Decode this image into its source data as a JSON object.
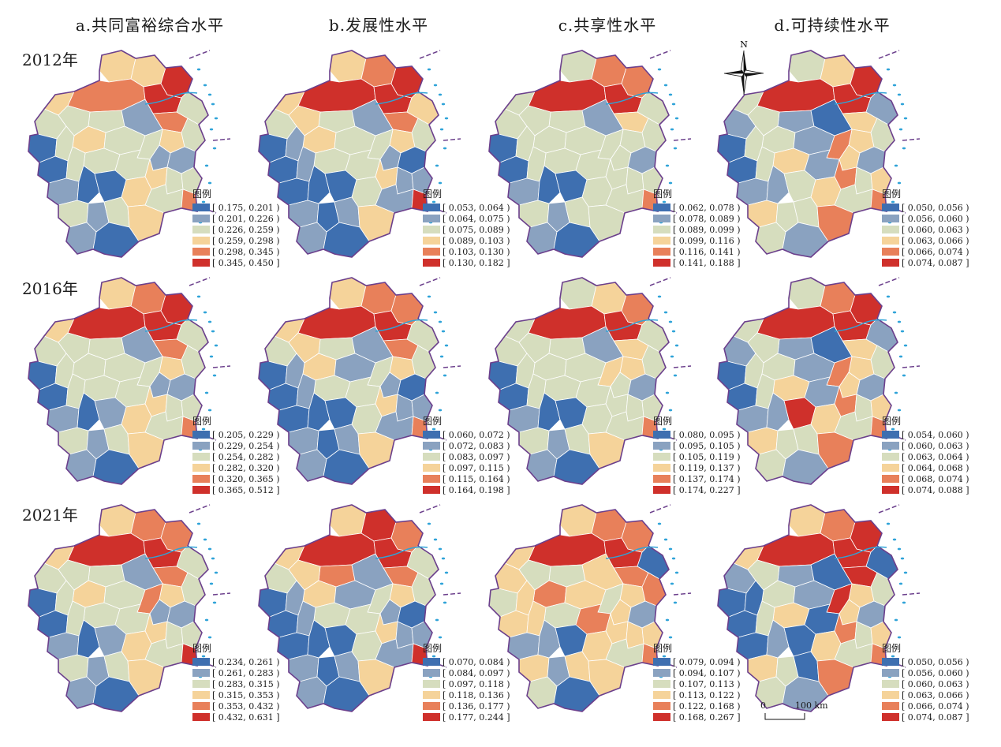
{
  "palette": [
    "#3e6fb0",
    "#8aa2c0",
    "#d6ddbe",
    "#f5d39a",
    "#e8805a",
    "#cf302b"
  ],
  "columns": [
    {
      "title": "a.共同富裕综合水平"
    },
    {
      "title": "b.发展性水平"
    },
    {
      "title": "c.共享性水平"
    },
    {
      "title": "d.可持续性水平"
    }
  ],
  "years": [
    "2012年",
    "2016年",
    "2021年"
  ],
  "legend_title": "图例",
  "north_label": "N",
  "scale": {
    "zero": "0",
    "end": "100 km"
  },
  "panels": [
    {
      "year": "2012年",
      "column": "a",
      "legend": [
        "[ 0.175, 0.201 )",
        "[ 0.201, 0.226 )",
        "[ 0.226, 0.259 )",
        "[ 0.259, 0.298 )",
        "[ 0.298, 0.345 )",
        "[ 0.345, 0.450 ]"
      ],
      "regions": [
        3,
        3,
        4,
        5,
        5,
        3,
        4,
        2,
        2,
        1,
        2,
        2,
        3,
        2,
        0,
        3,
        2,
        2,
        1,
        1,
        2,
        2,
        0,
        2,
        2,
        3,
        2,
        2,
        1,
        0,
        0,
        3,
        2,
        4,
        2,
        1,
        2,
        3,
        1,
        0
      ]
    },
    {
      "year": "2012年",
      "column": "b",
      "legend": [
        "[ 0.053, 0.064 )",
        "[ 0.064, 0.075 )",
        "[ 0.075, 0.089 )",
        "[ 0.089, 0.103 )",
        "[ 0.103, 0.130 )",
        "[ 0.130, 0.182 ]"
      ],
      "regions": [
        3,
        4,
        5,
        5,
        5,
        3,
        4,
        3,
        2,
        1,
        2,
        3,
        3,
        2,
        0,
        3,
        2,
        2,
        1,
        0,
        1,
        2,
        0,
        1,
        2,
        3,
        1,
        1,
        0,
        0,
        0,
        2,
        1,
        5,
        1,
        0,
        1,
        3,
        1,
        0
      ]
    },
    {
      "year": "2012年",
      "column": "c",
      "legend": [
        "[ 0.062, 0.078 )",
        "[ 0.078, 0.089 )",
        "[ 0.089, 0.099 )",
        "[ 0.099, 0.116 )",
        "[ 0.116, 0.141 )",
        "[ 0.141, 0.188 ]"
      ],
      "regions": [
        2,
        4,
        5,
        5,
        4,
        2,
        3,
        2,
        2,
        1,
        2,
        2,
        2,
        2,
        0,
        2,
        2,
        2,
        2,
        1,
        2,
        2,
        0,
        2,
        2,
        2,
        2,
        2,
        1,
        0,
        0,
        2,
        2,
        4,
        2,
        1,
        2,
        2,
        1,
        0
      ]
    },
    {
      "year": "2012年",
      "column": "d",
      "legend": [
        "[ 0.050, 0.056 )",
        "[ 0.056, 0.060 )",
        "[ 0.060, 0.063 )",
        "[ 0.063, 0.066 )",
        "[ 0.066, 0.074 )",
        "[ 0.074, 0.087 ]"
      ],
      "regions": [
        2,
        3,
        5,
        5,
        5,
        2,
        3,
        1,
        1,
        0,
        1,
        2,
        3,
        2,
        0,
        2,
        1,
        4,
        3,
        1,
        2,
        3,
        0,
        2,
        1,
        4,
        2,
        3,
        1,
        1,
        2,
        3,
        2,
        4,
        3,
        2,
        2,
        4,
        2,
        1
      ]
    },
    {
      "year": "2016年",
      "column": "a",
      "legend": [
        "[ 0.205, 0.229 )",
        "[ 0.229, 0.254 )",
        "[ 0.254, 0.282 )",
        "[ 0.282, 0.320 )",
        "[ 0.320, 0.365 )",
        "[ 0.365, 0.512 ]"
      ],
      "regions": [
        3,
        4,
        5,
        5,
        5,
        3,
        4,
        2,
        2,
        1,
        2,
        2,
        3,
        2,
        0,
        2,
        2,
        2,
        1,
        1,
        2,
        2,
        0,
        2,
        2,
        3,
        2,
        2,
        1,
        0,
        1,
        3,
        2,
        4,
        2,
        1,
        2,
        3,
        1,
        0
      ]
    },
    {
      "year": "2016年",
      "column": "b",
      "legend": [
        "[ 0.060, 0.072 )",
        "[ 0.072, 0.083 )",
        "[ 0.083, 0.097 )",
        "[ 0.097, 0.115 )",
        "[ 0.115, 0.164 )",
        "[ 0.164, 0.198 ]"
      ],
      "regions": [
        3,
        4,
        5,
        5,
        4,
        3,
        4,
        2,
        2,
        1,
        2,
        3,
        3,
        2,
        0,
        3,
        1,
        2,
        1,
        0,
        1,
        2,
        0,
        1,
        2,
        3,
        1,
        1,
        0,
        0,
        0,
        2,
        1,
        4,
        1,
        0,
        1,
        3,
        1,
        0
      ]
    },
    {
      "year": "2016年",
      "column": "c",
      "legend": [
        "[ 0.080, 0.095 )",
        "[ 0.095, 0.105 )",
        "[ 0.105, 0.119 )",
        "[ 0.119, 0.137 )",
        "[ 0.137, 0.174 )",
        "[ 0.174, 0.227 ]"
      ],
      "regions": [
        2,
        3,
        5,
        5,
        4,
        2,
        3,
        2,
        2,
        1,
        2,
        2,
        3,
        2,
        0,
        2,
        2,
        3,
        2,
        1,
        2,
        2,
        0,
        2,
        2,
        2,
        2,
        2,
        1,
        0,
        0,
        2,
        2,
        4,
        2,
        1,
        2,
        3,
        1,
        0
      ]
    },
    {
      "year": "2016年",
      "column": "d",
      "legend": [
        "[ 0.054, 0.060 )",
        "[ 0.060, 0.063 )",
        "[ 0.063, 0.064 )",
        "[ 0.064, 0.068 )",
        "[ 0.068, 0.074 )",
        "[ 0.074, 0.088 ]"
      ],
      "regions": [
        2,
        4,
        5,
        5,
        5,
        2,
        3,
        1,
        1,
        0,
        1,
        2,
        3,
        2,
        0,
        2,
        1,
        4,
        3,
        1,
        2,
        3,
        0,
        2,
        1,
        4,
        2,
        3,
        1,
        1,
        5,
        3,
        2,
        4,
        3,
        2,
        2,
        4,
        2,
        1
      ]
    },
    {
      "year": "2021年",
      "column": "a",
      "legend": [
        "[ 0.234, 0.261 )",
        "[ 0.261, 0.283 )",
        "[ 0.283, 0.315 )",
        "[ 0.315, 0.353 )",
        "[ 0.353, 0.432 )",
        "[ 0.432, 0.631 ]"
      ],
      "regions": [
        3,
        4,
        5,
        5,
        4,
        3,
        4,
        2,
        2,
        1,
        2,
        2,
        3,
        2,
        0,
        3,
        2,
        4,
        1,
        1,
        2,
        2,
        0,
        2,
        2,
        3,
        2,
        2,
        1,
        0,
        1,
        3,
        2,
        5,
        2,
        1,
        2,
        3,
        1,
        0
      ]
    },
    {
      "year": "2021年",
      "column": "b",
      "legend": [
        "[ 0.070, 0.084 )",
        "[ 0.084, 0.097 )",
        "[ 0.097, 0.118 )",
        "[ 0.118, 0.136 )",
        "[ 0.136, 0.177 )",
        "[ 0.177, 0.244 ]"
      ],
      "regions": [
        3,
        5,
        5,
        5,
        4,
        3,
        4,
        2,
        4,
        1,
        2,
        3,
        3,
        2,
        0,
        3,
        1,
        2,
        1,
        0,
        1,
        2,
        0,
        1,
        2,
        3,
        1,
        1,
        0,
        0,
        0,
        2,
        1,
        5,
        1,
        0,
        1,
        3,
        1,
        0
      ]
    },
    {
      "year": "2021年",
      "column": "c",
      "legend": [
        "[ 0.079, 0.094 )",
        "[ 0.094, 0.107 )",
        "[ 0.107, 0.113 )",
        "[ 0.113, 0.122 )",
        "[ 0.122, 0.168 )",
        "[ 0.168, 0.267 ]"
      ],
      "regions": [
        3,
        4,
        5,
        5,
        4,
        3,
        4,
        0,
        2,
        3,
        3,
        2,
        3,
        4,
        2,
        4,
        3,
        2,
        3,
        1,
        3,
        2,
        3,
        3,
        4,
        3,
        3,
        3,
        1,
        1,
        0,
        3,
        2,
        4,
        3,
        1,
        3,
        3,
        2,
        0
      ]
    },
    {
      "year": "2021年",
      "column": "d",
      "legend": [
        "[ 0.050, 0.056 )",
        "[ 0.056, 0.060 )",
        "[ 0.060, 0.063 )",
        "[ 0.063, 0.066 )",
        "[ 0.066, 0.074 )",
        "[ 0.074, 0.087 ]"
      ],
      "regions": [
        3,
        4,
        5,
        5,
        5,
        3,
        5,
        0,
        1,
        0,
        1,
        2,
        3,
        2,
        0,
        2,
        1,
        5,
        3,
        1,
        0,
        3,
        0,
        2,
        0,
        4,
        2,
        3,
        0,
        1,
        0,
        3,
        2,
        4,
        3,
        2,
        0,
        4,
        2,
        1
      ]
    }
  ]
}
